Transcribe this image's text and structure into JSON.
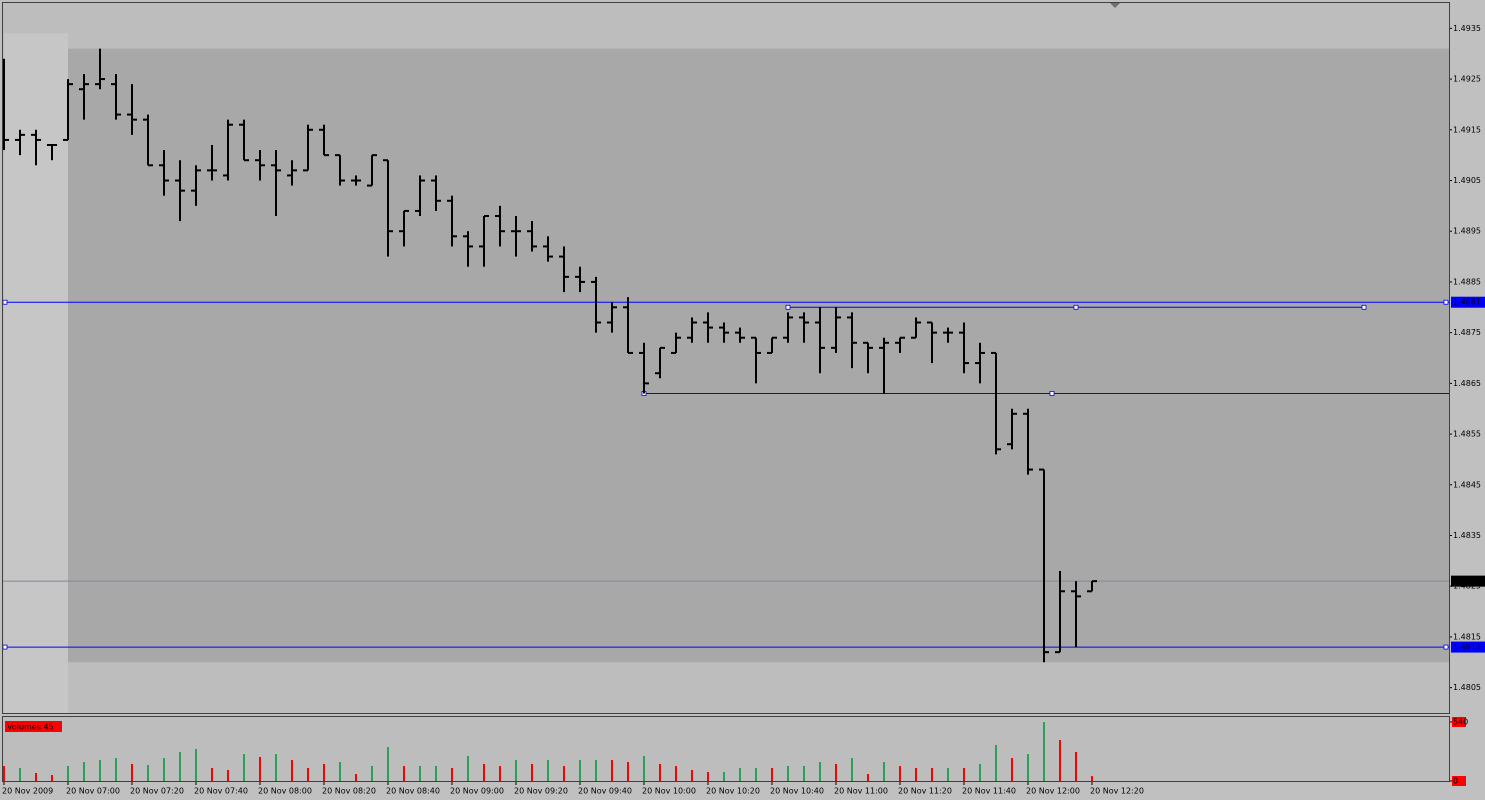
{
  "chart_data": [
    {
      "type": "ohlc",
      "open": [
        1.4913,
        1.4913,
        1.4914,
        1.4912,
        1.4913,
        1.4923,
        1.4924,
        1.4924,
        1.4918,
        1.4917,
        1.4908,
        1.4905,
        1.4903,
        1.4907,
        1.4906,
        1.4916,
        1.4909,
        1.4908,
        1.4906,
        1.4907,
        1.4915,
        1.491,
        1.4905,
        1.4904,
        1.4909,
        1.4895,
        1.4899,
        1.4905,
        1.4901,
        1.4894,
        1.4892,
        1.4898,
        1.4895,
        1.4895,
        1.4892,
        1.489,
        1.4886,
        1.4885,
        1.4877,
        1.488,
        1.4871,
        1.4867,
        1.4871,
        1.4874,
        1.4877,
        1.4876,
        1.4875,
        1.4874,
        1.4871,
        1.4874,
        1.4878,
        1.4877,
        1.4872,
        1.4878,
        1.4873,
        1.4872,
        1.4873,
        1.4874,
        1.4877,
        1.4875,
        1.4875,
        1.4869,
        1.4871,
        1.4853,
        1.4859,
        1.4848,
        1.4812,
        1.4824,
        1.4824
      ],
      "high": [
        1.4929,
        1.4915,
        1.4915,
        1.4912,
        1.4925,
        1.4926,
        1.4931,
        1.4926,
        1.4924,
        1.4918,
        1.4911,
        1.4909,
        1.4908,
        1.4912,
        1.4917,
        1.4917,
        1.4911,
        1.4911,
        1.4909,
        1.4916,
        1.4916,
        1.491,
        1.4906,
        1.491,
        1.4909,
        1.4899,
        1.4906,
        1.4906,
        1.4902,
        1.4895,
        1.4898,
        1.49,
        1.4898,
        1.4897,
        1.4894,
        1.4892,
        1.4888,
        1.4886,
        1.4881,
        1.4882,
        1.4873,
        1.4872,
        1.4875,
        1.4878,
        1.4879,
        1.4877,
        1.4876,
        1.4874,
        1.4874,
        1.4879,
        1.4879,
        1.488,
        1.488,
        1.4879,
        1.4873,
        1.4874,
        1.4874,
        1.4878,
        1.4877,
        1.4876,
        1.4877,
        1.4873,
        1.4871,
        1.486,
        1.486,
        1.4848,
        1.4828,
        1.4826,
        1.4826
      ],
      "low": [
        1.4911,
        1.491,
        1.4908,
        1.4909,
        1.4913,
        1.4917,
        1.4923,
        1.4917,
        1.4914,
        1.4908,
        1.4902,
        1.4897,
        1.49,
        1.4905,
        1.4905,
        1.4909,
        1.4905,
        1.4898,
        1.4904,
        1.4907,
        1.491,
        1.4904,
        1.4904,
        1.4904,
        1.489,
        1.4892,
        1.4898,
        1.4899,
        1.4892,
        1.4888,
        1.4888,
        1.4892,
        1.489,
        1.4891,
        1.4889,
        1.4883,
        1.4883,
        1.4875,
        1.4875,
        1.4871,
        1.4863,
        1.4866,
        1.4871,
        1.4873,
        1.4873,
        1.4873,
        1.4873,
        1.4865,
        1.4871,
        1.4873,
        1.4873,
        1.4867,
        1.4871,
        1.4868,
        1.4867,
        1.4863,
        1.4871,
        1.4874,
        1.4869,
        1.4873,
        1.4867,
        1.4865,
        1.4851,
        1.4852,
        1.4847,
        1.481,
        1.4812,
        1.4813,
        1.4824
      ],
      "close": [
        1.4913,
        1.4914,
        1.4913,
        1.4912,
        1.4924,
        1.4924,
        1.4925,
        1.4918,
        1.4917,
        1.4908,
        1.4905,
        1.4903,
        1.4907,
        1.4907,
        1.4916,
        1.4909,
        1.4908,
        1.4907,
        1.4907,
        1.4915,
        1.491,
        1.4905,
        1.4905,
        1.491,
        1.4895,
        1.4899,
        1.4905,
        1.4901,
        1.4894,
        1.4892,
        1.4898,
        1.4895,
        1.4895,
        1.4892,
        1.489,
        1.4886,
        1.4885,
        1.4877,
        1.488,
        1.4871,
        1.4865,
        1.4872,
        1.4874,
        1.4877,
        1.4876,
        1.4875,
        1.4874,
        1.4871,
        1.4874,
        1.4878,
        1.4877,
        1.4872,
        1.4878,
        1.4873,
        1.4872,
        1.4873,
        1.4874,
        1.4877,
        1.4875,
        1.4875,
        1.4869,
        1.4871,
        1.4852,
        1.4859,
        1.4848,
        1.4812,
        1.4824,
        1.4823,
        1.4826
      ],
      "color": "#000000",
      "ylim": [
        1.48,
        1.494
      ],
      "yticks": [
        1.4805,
        1.4815,
        1.4825,
        1.4835,
        1.4845,
        1.4855,
        1.4865,
        1.4875,
        1.4885,
        1.4895,
        1.4905,
        1.4915,
        1.4925,
        1.4935
      ],
      "rectangles": [
        {
          "x": [
            0,
            4
          ],
          "y": [
            1.4934,
            1.48
          ],
          "color": "#c6c6c6"
        },
        {
          "x": [
            4,
            92
          ],
          "y": [
            1.4931,
            1.481
          ],
          "color": "#a8a8a8"
        }
      ],
      "hlines": [
        {
          "value": 1.4881,
          "color": "#0000ff"
        },
        {
          "value": 1.4813,
          "color": "#0000ff"
        }
      ],
      "trendlines": [
        {
          "x": [
            49,
            85
          ],
          "y": [
            1.488,
            1.488
          ],
          "color": "#0000ff"
        },
        {
          "x": [
            40,
            91
          ],
          "y": [
            1.4863,
            1.4863
          ],
          "color": "#0000ff"
        }
      ],
      "last_price": 1.4826
    },
    {
      "type": "bar",
      "label": "Volumes 45",
      "categories": [
        "20 Nov 2009",
        null,
        null,
        null,
        "20 Nov 07:00",
        null,
        null,
        null,
        "20 Nov 07:20",
        null,
        null,
        null,
        "20 Nov 07:40",
        null,
        null,
        null,
        "20 Nov 08:00",
        null,
        null,
        null,
        "20 Nov 08:20",
        null,
        null,
        null,
        "20 Nov 08:40",
        null,
        null,
        null,
        "20 Nov 09:00",
        null,
        null,
        null,
        "20 Nov 09:20",
        null,
        null,
        null,
        "20 Nov 09:40",
        null,
        null,
        null,
        "20 Nov 10:00",
        null,
        null,
        null,
        "20 Nov 10:20",
        null,
        null,
        null,
        "20 Nov 10:40",
        null,
        null,
        null,
        "20 Nov 11:00",
        null,
        null,
        null,
        "20 Nov 11:20",
        null,
        null,
        null,
        "20 Nov 11:40",
        null,
        null,
        null,
        "20 Nov 12:00",
        null,
        null,
        null,
        "20 Nov 12:20"
      ],
      "values": [
        137,
        119,
        73,
        55,
        137,
        174,
        192,
        210,
        156,
        146,
        210,
        265,
        293,
        119,
        101,
        247,
        220,
        247,
        192,
        119,
        156,
        174,
        64,
        137,
        311,
        137,
        137,
        137,
        119,
        229,
        156,
        137,
        192,
        156,
        192,
        137,
        192,
        192,
        192,
        174,
        229,
        156,
        137,
        101,
        82,
        82,
        119,
        119,
        119,
        137,
        137,
        174,
        156,
        210,
        64,
        174,
        137,
        119,
        119,
        119,
        119,
        156,
        329,
        210,
        247,
        540,
        375,
        265,
        45
      ],
      "colors": [
        "#ff0000",
        "#2e9e5b",
        "#ff0000",
        "#ff0000",
        "#2e9e5b",
        "#2e9e5b",
        "#2e9e5b",
        "#2e9e5b",
        "#ff0000",
        "#2e9e5b",
        "#2e9e5b",
        "#2e9e5b",
        "#2e9e5b",
        "#ff0000",
        "#ff0000",
        "#2e9e5b",
        "#ff0000",
        "#2e9e5b",
        "#ff0000",
        "#ff0000",
        "#ff0000",
        "#2e9e5b",
        "#ff0000",
        "#2e9e5b",
        "#2e9e5b",
        "#ff0000",
        "#2e9e5b",
        "#2e9e5b",
        "#ff0000",
        "#2e9e5b",
        "#ff0000",
        "#ff0000",
        "#2e9e5b",
        "#ff0000",
        "#2e9e5b",
        "#ff0000",
        "#2e9e5b",
        "#2e9e5b",
        "#ff0000",
        "#ff0000",
        "#2e9e5b",
        "#ff0000",
        "#ff0000",
        "#ff0000",
        "#ff0000",
        "#2e9e5b",
        "#2e9e5b",
        "#2e9e5b",
        "#ff0000",
        "#2e9e5b",
        "#2e9e5b",
        "#2e9e5b",
        "#ff0000",
        "#2e9e5b",
        "#ff0000",
        "#2e9e5b",
        "#ff0000",
        "#ff0000",
        "#ff0000",
        "#2e9e5b",
        "#ff0000",
        "#2e9e5b",
        "#2e9e5b",
        "#ff0000",
        "#2e9e5b",
        "#2e9e5b",
        "#ff0000",
        "#ff0000",
        "#ff0000"
      ],
      "ylim": [
        0,
        540
      ],
      "yticks": [
        0,
        540
      ]
    }
  ]
}
